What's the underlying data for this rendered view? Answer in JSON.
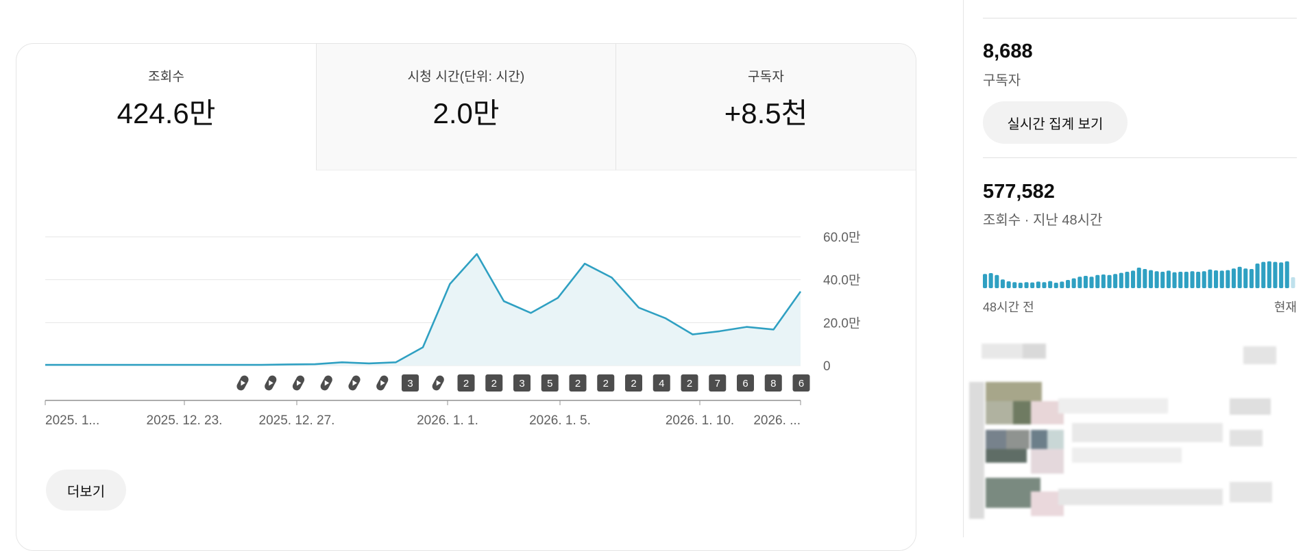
{
  "tabs": [
    {
      "label": "조회수",
      "value": "424.6만"
    },
    {
      "label": "시청 시간(단위: 시간)",
      "value": "2.0만"
    },
    {
      "label": "구독자",
      "value": "+8.5천"
    }
  ],
  "chart_data": {
    "type": "area",
    "color": "#2fa0c2",
    "fill": "#e9f4f7",
    "y_ticks": [
      {
        "label": "60.0만",
        "value": 600000
      },
      {
        "label": "40.0만",
        "value": 400000
      },
      {
        "label": "20.0만",
        "value": 200000
      },
      {
        "label": "0",
        "value": 0
      }
    ],
    "ylim": [
      0,
      600000
    ],
    "x_tick_labels": [
      "2025. 1...",
      "2025. 12. 23.",
      "2025. 12. 27.",
      "2026. 1. 1.",
      "2026. 1. 5.",
      "2026. 1. 10.",
      "2026. ..."
    ],
    "values": [
      3000,
      3000,
      3000,
      3000,
      3000,
      3000,
      3000,
      3000,
      3000,
      5000,
      6000,
      15000,
      10000,
      15000,
      85000,
      380000,
      520000,
      300000,
      245000,
      315000,
      475000,
      410000,
      270000,
      220000,
      145000,
      160000,
      180000,
      168000,
      345000
    ],
    "upload_markers": [
      "short",
      "short",
      "short",
      "short",
      "short",
      "short",
      "3",
      "short",
      "2",
      "2",
      "3",
      "5",
      "2",
      "2",
      "2",
      "4",
      "2",
      "7",
      "6",
      "8",
      "6"
    ]
  },
  "more_button": "더보기",
  "realtime": {
    "subscribers": "8,688",
    "subscribers_label": "구독자",
    "button": "실시간 집계 보기",
    "views": "577,582",
    "views_label": "조회수 · 지난 48시간",
    "start_label": "48시간 전",
    "end_label": "현재",
    "bars": [
      0.52,
      0.55,
      0.48,
      0.32,
      0.25,
      0.22,
      0.2,
      0.22,
      0.21,
      0.24,
      0.22,
      0.26,
      0.2,
      0.24,
      0.3,
      0.36,
      0.42,
      0.45,
      0.42,
      0.48,
      0.5,
      0.48,
      0.52,
      0.56,
      0.6,
      0.64,
      0.75,
      0.7,
      0.66,
      0.62,
      0.6,
      0.64,
      0.58,
      0.6,
      0.6,
      0.62,
      0.6,
      0.62,
      0.68,
      0.65,
      0.64,
      0.66,
      0.72,
      0.78,
      0.72,
      0.7,
      0.9,
      0.96,
      0.98,
      0.96,
      0.94,
      0.98,
      0.4
    ]
  }
}
